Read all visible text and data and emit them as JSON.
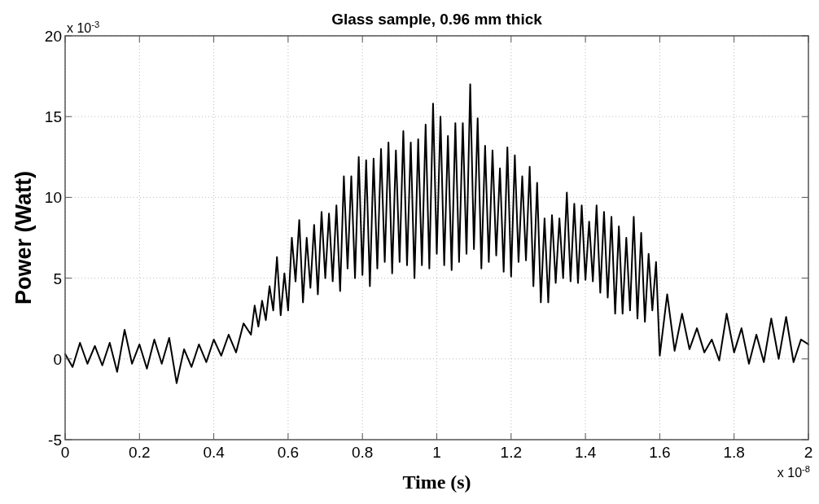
{
  "chart_data": {
    "type": "line",
    "title": "Glass sample, 0.96 mm thick",
    "xlabel": "Time (s)",
    "ylabel": "Power (Watt)",
    "annotations": [
      "x 10$^{-3}$",
      "x 10$^{-8}$"
    ],
    "xlim": [
      0,
      2
    ],
    "xticks": [
      0,
      0.2,
      0.4,
      0.6,
      0.8,
      1,
      1.2,
      1.4,
      1.6,
      1.8,
      2
    ],
    "ylim": [
      -5,
      20
    ],
    "yticks": [
      -5,
      0,
      5,
      10,
      15,
      20
    ],
    "grid": true,
    "marker": "none",
    "line_style": "solid",
    "series": [
      {
        "color": "#000000",
        "x": [
          0,
          0.02,
          0.04,
          0.06,
          0.08,
          0.1,
          0.12,
          0.14,
          0.16,
          0.18,
          0.2,
          0.22,
          0.24,
          0.26,
          0.28,
          0.3,
          0.32,
          0.34,
          0.36,
          0.38,
          0.4,
          0.42,
          0.44,
          0.46,
          0.48,
          0.5,
          0.51,
          0.52,
          0.53,
          0.54,
          0.55,
          0.56,
          0.57,
          0.58,
          0.59,
          0.6,
          0.61,
          0.62,
          0.63,
          0.64,
          0.65,
          0.66,
          0.67,
          0.68,
          0.69,
          0.7,
          0.71,
          0.72,
          0.73,
          0.74,
          0.75,
          0.76,
          0.77,
          0.78,
          0.79,
          0.8,
          0.81,
          0.82,
          0.83,
          0.84,
          0.85,
          0.86,
          0.87,
          0.88,
          0.89,
          0.9,
          0.91,
          0.92,
          0.93,
          0.94,
          0.95,
          0.96,
          0.97,
          0.98,
          0.99,
          1,
          1.01,
          1.02,
          1.03,
          1.04,
          1.05,
          1.06,
          1.07,
          1.08,
          1.09,
          1.1,
          1.11,
          1.12,
          1.13,
          1.14,
          1.15,
          1.16,
          1.17,
          1.18,
          1.19,
          1.2,
          1.21,
          1.22,
          1.23,
          1.24,
          1.25,
          1.26,
          1.27,
          1.28,
          1.29,
          1.3,
          1.31,
          1.32,
          1.33,
          1.34,
          1.35,
          1.36,
          1.37,
          1.38,
          1.39,
          1.4,
          1.41,
          1.42,
          1.43,
          1.44,
          1.45,
          1.46,
          1.47,
          1.48,
          1.49,
          1.5,
          1.51,
          1.52,
          1.53,
          1.54,
          1.55,
          1.56,
          1.57,
          1.58,
          1.59,
          1.6,
          1.62,
          1.64,
          1.66,
          1.68,
          1.7,
          1.72,
          1.74,
          1.76,
          1.78,
          1.8,
          1.82,
          1.84,
          1.86,
          1.88,
          1.9,
          1.92,
          1.94,
          1.96,
          1.98,
          2
        ],
        "values": [
          0.3,
          -0.5,
          1.0,
          -0.3,
          0.8,
          -0.4,
          1.0,
          -0.8,
          1.8,
          -0.3,
          0.9,
          -0.6,
          1.2,
          -0.3,
          1.3,
          -1.5,
          0.6,
          -0.5,
          0.9,
          -0.2,
          1.2,
          0.2,
          1.5,
          0.4,
          2.2,
          1.5,
          3.3,
          2.0,
          3.6,
          2.4,
          4.5,
          3.0,
          6.3,
          2.7,
          5.3,
          3.0,
          7.5,
          4.8,
          8.6,
          3.5,
          7.5,
          4.4,
          8.3,
          4.0,
          9.1,
          5.0,
          9.0,
          4.8,
          9.5,
          4.2,
          11.3,
          5.6,
          11.3,
          5.0,
          12.5,
          5.2,
          12.3,
          4.5,
          12.4,
          5.6,
          13.0,
          6.0,
          13.4,
          5.3,
          12.9,
          6.0,
          14.1,
          5.8,
          13.4,
          5.0,
          13.6,
          5.8,
          14.5,
          5.6,
          15.8,
          6.5,
          15.0,
          5.8,
          13.8,
          5.5,
          14.6,
          6.0,
          14.6,
          6.5,
          17.0,
          6.8,
          14.9,
          5.6,
          13.2,
          6.0,
          12.9,
          6.4,
          11.8,
          5.4,
          13.1,
          5.1,
          12.6,
          6.0,
          11.3,
          6.1,
          11.9,
          4.5,
          10.9,
          3.5,
          8.7,
          3.5,
          8.9,
          4.7,
          8.7,
          5.0,
          10.3,
          4.8,
          9.6,
          4.7,
          9.5,
          4.9,
          8.5,
          4.8,
          9.5,
          4.1,
          9.1,
          3.8,
          8.8,
          2.8,
          8.2,
          2.8,
          7.5,
          3.0,
          8.8,
          2.5,
          7.8,
          2.3,
          6.5,
          3.0,
          6.0,
          0.2,
          4.0,
          0.5,
          2.8,
          0.6,
          1.9,
          0.4,
          1.2,
          -0.1,
          2.8,
          0.4,
          1.9,
          -0.3,
          1.5,
          -0.2,
          2.5,
          0.0,
          2.6,
          -0.2,
          1.2,
          0.9
        ]
      }
    ]
  }
}
